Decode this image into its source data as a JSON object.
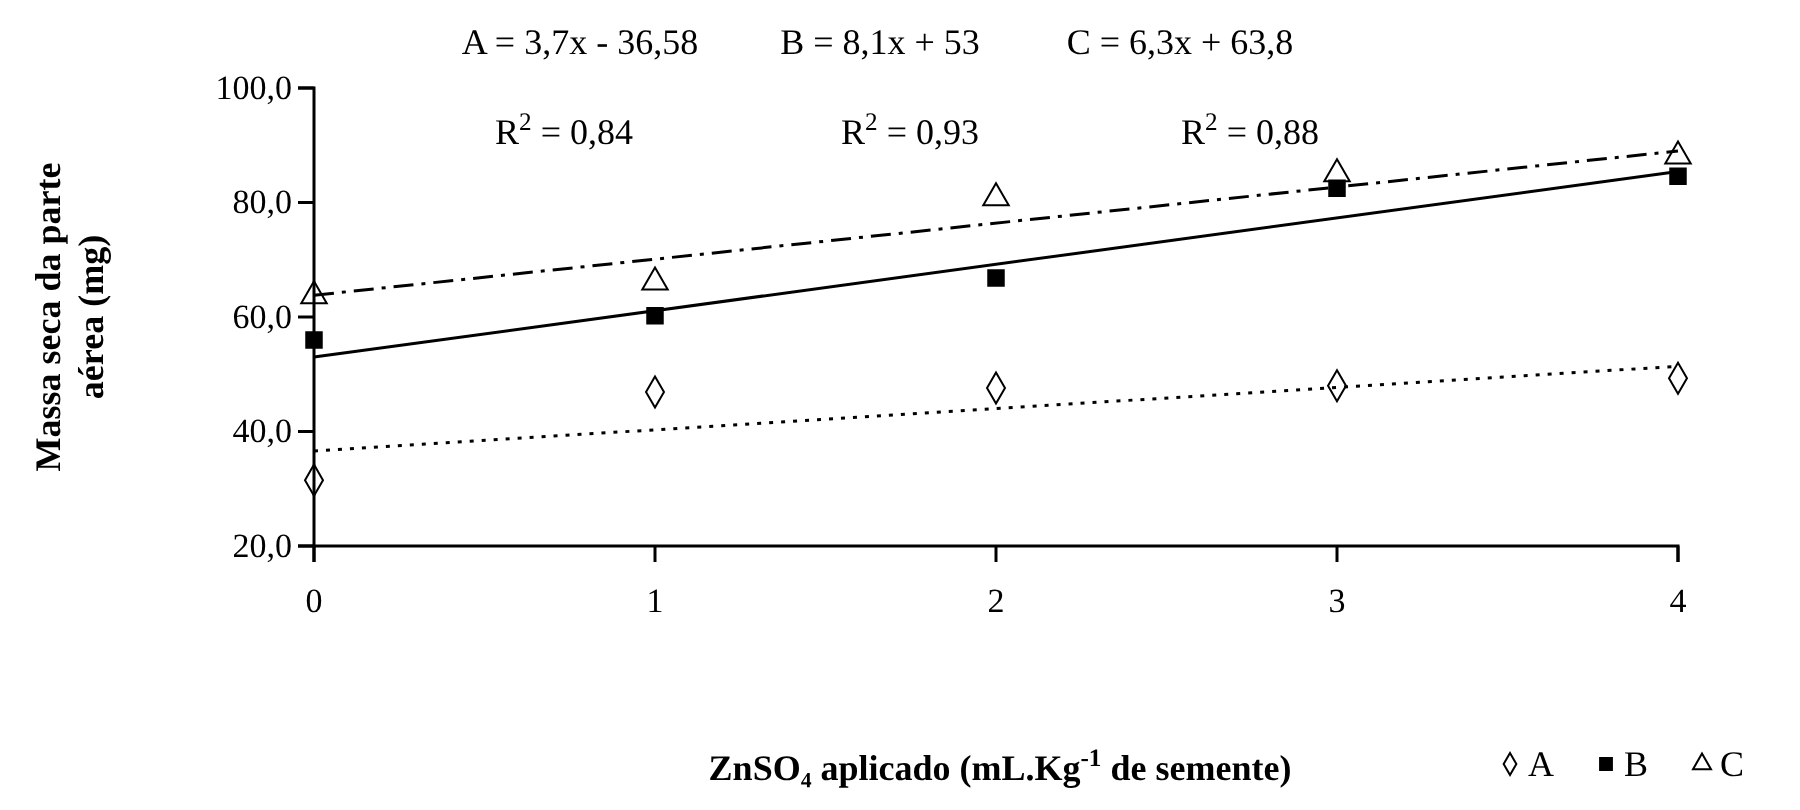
{
  "chart_data": {
    "type": "scatter",
    "xlabel": "ZnSO₄ aplicado (mL.Kg$^{-1}$ de semente)",
    "ylabel": "Massa seca da parte aérea (mg)",
    "xlim": [
      0,
      4
    ],
    "xticks": [
      0,
      1,
      2,
      3,
      4
    ],
    "ylim": [
      20,
      100
    ],
    "yticks": [
      {
        "value": 20,
        "label": "20,0"
      },
      {
        "value": 40,
        "label": "40,0"
      },
      {
        "value": 60,
        "label": "60,0"
      },
      {
        "value": 80,
        "label": "80,0"
      },
      {
        "value": 100,
        "label": "100,0"
      }
    ],
    "grid": false,
    "legend": "bottom right",
    "series": [
      {
        "name": "A",
        "color": "#000000",
        "marker": "diamond",
        "x": [
          0,
          1,
          2,
          3,
          4
        ],
        "values": [
          31.5,
          46.9,
          47.6,
          48,
          49.3
        ]
      },
      {
        "name": "B",
        "color": "#000000",
        "marker": "square",
        "x": [
          0,
          1,
          2,
          3,
          4
        ],
        "values": [
          56,
          60.2,
          66.8,
          82.5,
          84.6
        ]
      },
      {
        "name": "C",
        "color": "#000000",
        "marker": "triangle",
        "x": [
          0,
          1,
          2,
          3,
          4
        ],
        "values": [
          63.7,
          66.1,
          80.8,
          85,
          88.1
        ]
      },
      {
        "type": "line",
        "color": "#000000",
        "line_style": "dotted",
        "x": [
          0,
          4
        ],
        "values": [
          36.6,
          51.4
        ]
      },
      {
        "type": "line",
        "color": "#000000",
        "line_style": "solid",
        "x": [
          0,
          4
        ],
        "values": [
          53,
          85.4
        ]
      },
      {
        "type": "line",
        "color": "#000000",
        "line_style": "dashed",
        "x": [
          0,
          4
        ],
        "values": [
          63.8,
          89
        ]
      }
    ],
    "annotations": [
      "A = 3,7x - 36,58",
      "B = 8,1x + 53",
      "C = 6,3x + 63,8",
      "R$^{2}$ = 0,84",
      "R$^{2}$ = 0,93",
      "R$^{2}$ = 0,88"
    ]
  }
}
